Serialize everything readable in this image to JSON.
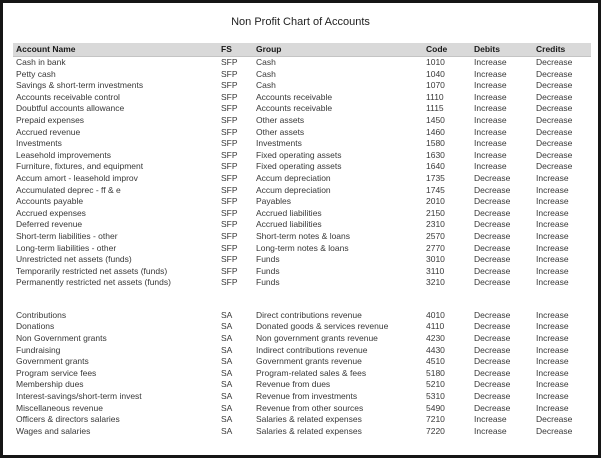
{
  "title": "Non Profit Chart of Accounts",
  "colors": {
    "header_bg": "#d9d9d9",
    "header_text": "#1a1a1a",
    "body_text": "#383838",
    "frame_border": "#161616"
  },
  "table": {
    "headers": [
      "Account Name",
      "FS",
      "Group",
      "Code",
      "Debits",
      "Credits"
    ],
    "column_keys": [
      "account",
      "fs",
      "group",
      "code",
      "debits",
      "credits"
    ],
    "sections": [
      {
        "rows": [
          {
            "account": "Cash in bank",
            "fs": "SFP",
            "group": "Cash",
            "code": "1010",
            "debits": "Increase",
            "credits": "Decrease"
          },
          {
            "account": "Petty cash",
            "fs": "SFP",
            "group": "Cash",
            "code": "1040",
            "debits": "Increase",
            "credits": "Decrease"
          },
          {
            "account": "Savings & short-term investments",
            "fs": "SFP",
            "group": "Cash",
            "code": "1070",
            "debits": "Increase",
            "credits": "Decrease"
          },
          {
            "account": "Accounts receivable control",
            "fs": "SFP",
            "group": "Accounts receivable",
            "code": "1110",
            "debits": "Increase",
            "credits": "Decrease"
          },
          {
            "account": "Doubtful accounts allowance",
            "fs": "SFP",
            "group": "Accounts receivable",
            "code": "1115",
            "debits": "Increase",
            "credits": "Decrease"
          },
          {
            "account": "Prepaid expenses",
            "fs": "SFP",
            "group": "Other assets",
            "code": "1450",
            "debits": "Increase",
            "credits": "Decrease"
          },
          {
            "account": "Accrued revenue",
            "fs": "SFP",
            "group": "Other assets",
            "code": "1460",
            "debits": "Increase",
            "credits": "Decrease"
          },
          {
            "account": "Investments",
            "fs": "SFP",
            "group": "Investments",
            "code": "1580",
            "debits": "Increase",
            "credits": "Decrease"
          },
          {
            "account": "Leasehold improvements",
            "fs": "SFP",
            "group": "Fixed operating assets",
            "code": "1630",
            "debits": "Increase",
            "credits": "Decrease"
          },
          {
            "account": "Furniture, fixtures, and equipment",
            "fs": "SFP",
            "group": "Fixed operating assets",
            "code": "1640",
            "debits": "Increase",
            "credits": "Decrease"
          },
          {
            "account": "Accum amort - leasehold improv",
            "fs": "SFP",
            "group": "Accum depreciation",
            "code": "1735",
            "debits": "Decrease",
            "credits": "Increase"
          },
          {
            "account": "Accumulated deprec - ff & e",
            "fs": "SFP",
            "group": "Accum depreciation",
            "code": "1745",
            "debits": "Decrease",
            "credits": "Increase"
          },
          {
            "account": "Accounts payable",
            "fs": "SFP",
            "group": "Payables",
            "code": "2010",
            "debits": "Decrease",
            "credits": "Increase"
          },
          {
            "account": "Accrued expenses",
            "fs": "SFP",
            "group": "Accrued liabilities",
            "code": "2150",
            "debits": "Decrease",
            "credits": "Increase"
          },
          {
            "account": "Deferred revenue",
            "fs": "SFP",
            "group": "Accrued liabilities",
            "code": "2310",
            "debits": "Decrease",
            "credits": "Increase"
          },
          {
            "account": "Short-term liabilities - other",
            "fs": "SFP",
            "group": "Short-term notes & loans",
            "code": "2570",
            "debits": "Decrease",
            "credits": "Increase"
          },
          {
            "account": "Long-term liabilities - other",
            "fs": "SFP",
            "group": "Long-term notes & loans",
            "code": "2770",
            "debits": "Decrease",
            "credits": "Increase"
          },
          {
            "account": "Unrestricted net assets (funds)",
            "fs": "SFP",
            "group": "Funds",
            "code": "3010",
            "debits": "Decrease",
            "credits": "Increase"
          },
          {
            "account": "Temporarily restricted net assets (funds)",
            "fs": "SFP",
            "group": "Funds",
            "code": "3110",
            "debits": "Decrease",
            "credits": "Increase"
          },
          {
            "account": "Permanently restricted net assets (funds)",
            "fs": "SFP",
            "group": "Funds",
            "code": "3210",
            "debits": "Decrease",
            "credits": "Increase"
          }
        ]
      },
      {
        "rows": [
          {
            "account": "Contributions",
            "fs": "SA",
            "group": "Direct contributions revenue",
            "code": "4010",
            "debits": "Decrease",
            "credits": "Increase"
          },
          {
            "account": "Donations",
            "fs": "SA",
            "group": "Donated goods & services revenue",
            "code": "4110",
            "debits": "Decrease",
            "credits": "Increase"
          },
          {
            "account": "Non Government grants",
            "fs": "SA",
            "group": "Non government grants revenue",
            "code": "4230",
            "debits": "Decrease",
            "credits": "Increase"
          },
          {
            "account": "Fundraising",
            "fs": "SA",
            "group": "Indirect contributions revenue",
            "code": "4430",
            "debits": "Decrease",
            "credits": "Increase"
          },
          {
            "account": "Government grants",
            "fs": "SA",
            "group": "Government grants revenue",
            "code": "4510",
            "debits": "Decrease",
            "credits": "Increase"
          },
          {
            "account": "Program service fees",
            "fs": "SA",
            "group": "Program-related sales & fees",
            "code": "5180",
            "debits": "Decrease",
            "credits": "Increase"
          },
          {
            "account": "Membership dues",
            "fs": "SA",
            "group": "Revenue from dues",
            "code": "5210",
            "debits": "Decrease",
            "credits": "Increase"
          },
          {
            "account": "Interest-savings/short-term invest",
            "fs": "SA",
            "group": "Revenue from investments",
            "code": "5310",
            "debits": "Decrease",
            "credits": "Increase"
          },
          {
            "account": "Miscellaneous revenue",
            "fs": "SA",
            "group": "Revenue from other sources",
            "code": "5490",
            "debits": "Decrease",
            "credits": "Increase"
          },
          {
            "account": "Officers & directors salaries",
            "fs": "SA",
            "group": "Salaries & related expenses",
            "code": "7210",
            "debits": "Increase",
            "credits": "Decrease"
          },
          {
            "account": "Wages and salaries",
            "fs": "SA",
            "group": "Salaries & related expenses",
            "code": "7220",
            "debits": "Increase",
            "credits": "Decrease"
          }
        ]
      }
    ]
  }
}
